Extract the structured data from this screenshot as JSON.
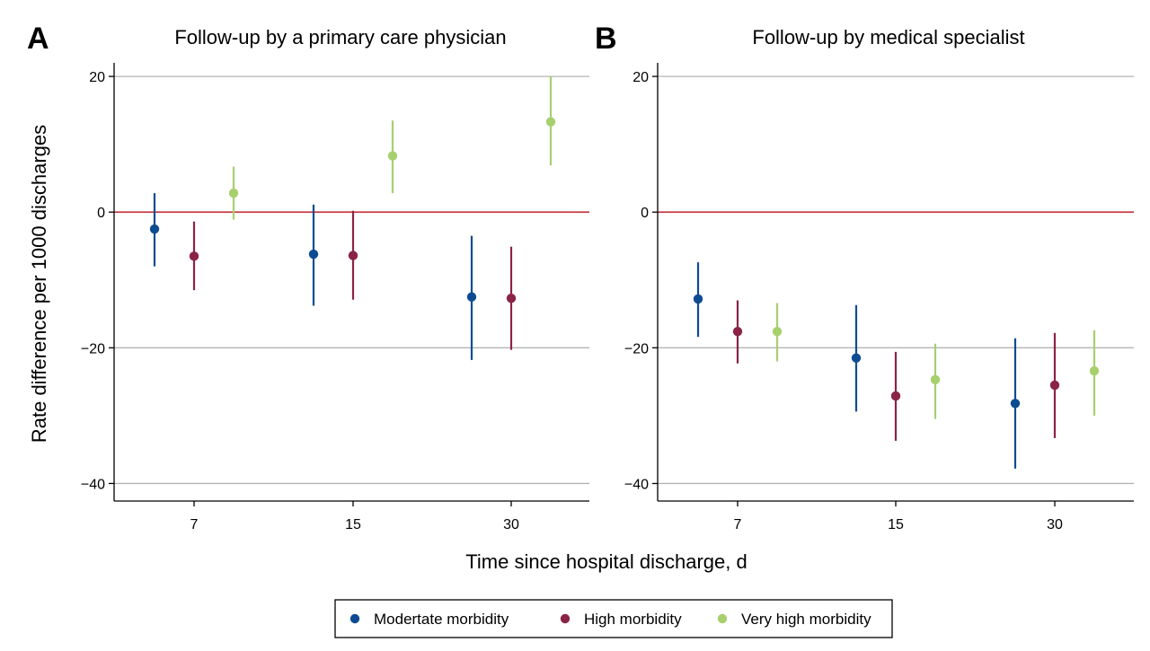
{
  "chart_data": [
    {
      "type": "scatter",
      "panel_label": "A",
      "title": "Follow-up by a primary care physician",
      "ylabel": "Rate difference per 1000 discharges",
      "xlabel": "Time since hospital discharge, d",
      "categories": [
        "7",
        "15",
        "30"
      ],
      "ylim": [
        -41,
        22
      ],
      "yticks": [
        20,
        0,
        -20,
        -40
      ],
      "reference_line": 0,
      "grid": true,
      "series": [
        {
          "name": "Modertate morbidity",
          "values": [
            -2.5,
            -6.2,
            -12.5
          ],
          "ci_low": [
            -8,
            -13.8,
            -21.8
          ],
          "ci_high": [
            2.8,
            1.1,
            -3.5
          ]
        },
        {
          "name": "High morbidity",
          "values": [
            -6.5,
            -6.4,
            -12.7
          ],
          "ci_low": [
            -11.5,
            -12.9,
            -20.3
          ],
          "ci_high": [
            -1.4,
            0.2,
            -5.1
          ]
        },
        {
          "name": "Very high morbidity",
          "values": [
            2.8,
            8.3,
            13.3
          ],
          "ci_low": [
            -1.1,
            2.8,
            6.9
          ],
          "ci_high": [
            6.7,
            13.5,
            20.0
          ]
        }
      ]
    },
    {
      "type": "scatter",
      "panel_label": "B",
      "title": "Follow-up by medical specialist",
      "xlabel": "Time since hospital discharge, d",
      "categories": [
        "7",
        "15",
        "30"
      ],
      "ylim": [
        -41,
        22
      ],
      "yticks": [
        20,
        0,
        -20,
        -40
      ],
      "reference_line": 0,
      "grid": true,
      "series": [
        {
          "name": "Modertate morbidity",
          "values": [
            -12.8,
            -21.5,
            -28.2
          ],
          "ci_low": [
            -18.4,
            -29.4,
            -37.8
          ],
          "ci_high": [
            -7.4,
            -13.7,
            -18.6
          ]
        },
        {
          "name": "High morbidity",
          "values": [
            -17.6,
            -27.1,
            -25.5
          ],
          "ci_low": [
            -22.3,
            -33.7,
            -33.3
          ],
          "ci_high": [
            -13.0,
            -20.6,
            -17.8
          ]
        },
        {
          "name": "Very high morbidity",
          "values": [
            -17.6,
            -24.7,
            -23.4
          ],
          "ci_low": [
            -22.0,
            -30.5,
            -30.0
          ],
          "ci_high": [
            -13.4,
            -19.4,
            -17.4
          ]
        }
      ]
    }
  ],
  "colors": {
    "Modertate morbidity": "#0e4c92",
    "High morbidity": "#8b2346",
    "Very high morbidity": "#a8cf6e",
    "reference_line": "#c8323c",
    "grid": "#b4b4b4"
  },
  "legend": {
    "items": [
      "Modertate morbidity",
      "High morbidity",
      "Very high morbidity"
    ]
  }
}
